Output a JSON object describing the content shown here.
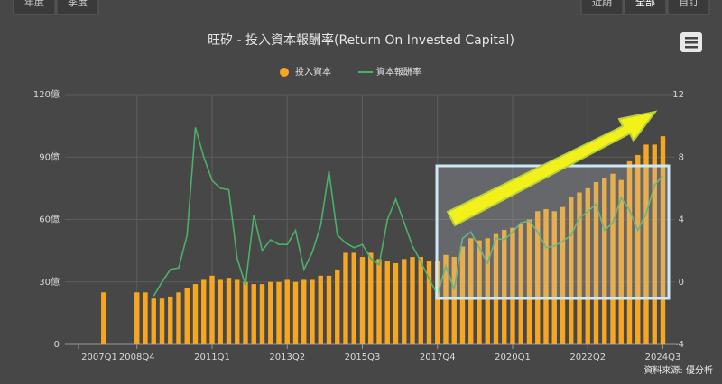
{
  "buttons_left": [
    "年度",
    "季度"
  ],
  "buttons_right": [
    "近期",
    "全部",
    "自訂"
  ],
  "source": "資料來源: 優分析",
  "chart_data": {
    "type": "bar-line",
    "title": "旺矽 - 投入資本報酬率(Return On Invested Capital)",
    "categories": [
      "2007Q1",
      null,
      null,
      null,
      null,
      null,
      null,
      "2008Q4",
      null,
      null,
      null,
      null,
      null,
      null,
      null,
      null,
      "2011Q1",
      null,
      null,
      null,
      null,
      null,
      null,
      null,
      null,
      "2013Q2",
      null,
      null,
      null,
      null,
      null,
      null,
      null,
      null,
      "2015Q3",
      null,
      null,
      null,
      null,
      null,
      null,
      null,
      null,
      "2017Q4",
      null,
      null,
      null,
      null,
      null,
      null,
      null,
      null,
      "2020Q1",
      null,
      null,
      null,
      null,
      null,
      null,
      null,
      null,
      "2022Q2",
      null,
      null,
      null,
      null,
      null,
      null,
      null,
      null,
      "2024Q3"
    ],
    "series": [
      {
        "name": "投入資本",
        "type": "bar",
        "color": "#f5a623",
        "axis": "y",
        "values": [
          null,
          null,
          null,
          25,
          null,
          null,
          null,
          25,
          25,
          22,
          22,
          23,
          25,
          27,
          29,
          31,
          33,
          31,
          32,
          31,
          30,
          29,
          29,
          30,
          30,
          31,
          30,
          31,
          31,
          33,
          33,
          36,
          44,
          44,
          42,
          44,
          41,
          40,
          39,
          41,
          42,
          42,
          40,
          40,
          43,
          42,
          47,
          51,
          50,
          51,
          53,
          55,
          56,
          58,
          60,
          64,
          65,
          64,
          66,
          71,
          73,
          75,
          78,
          80,
          82,
          79,
          88,
          91,
          96,
          96,
          100
        ]
      },
      {
        "name": "資本報酬率",
        "type": "line",
        "color": "#4caf6a",
        "axis": "y2",
        "values": [
          null,
          null,
          null,
          null,
          null,
          null,
          null,
          null,
          null,
          -0.9,
          0,
          0.8,
          0.9,
          3,
          9.9,
          8,
          6.5,
          6.0,
          5.9,
          1.5,
          -0.2,
          4.3,
          2,
          2.7,
          2.4,
          2.4,
          3.3,
          0.8,
          1.9,
          3.6,
          7.1,
          3.0,
          2.5,
          2.2,
          2.4,
          1.5,
          1.1,
          4,
          5.3,
          3.8,
          2.3,
          1.3,
          0.2,
          -0.8,
          1,
          -0.5,
          2.8,
          3.2,
          2.2,
          1.2,
          2.8,
          2.7,
          3.2,
          3.8,
          3.9,
          3.2,
          2.2,
          2.3,
          2.6,
          3,
          4.1,
          4.5,
          5.0,
          3.3,
          3.8,
          5.4,
          4.6,
          3.3,
          4.4,
          6.2,
          6.8
        ]
      }
    ],
    "ylim": [
      0,
      120
    ],
    "yticks": [
      0,
      {
        "value": 30,
        "label": "30億"
      },
      {
        "value": 60,
        "label": "60億"
      },
      {
        "value": 90,
        "label": "90億"
      },
      {
        "value": 120,
        "label": "120億"
      }
    ],
    "y2lim": [
      -4,
      12
    ],
    "y2ticks": [
      -4,
      0,
      4,
      8,
      12
    ],
    "grid": true,
    "legend": "top"
  }
}
